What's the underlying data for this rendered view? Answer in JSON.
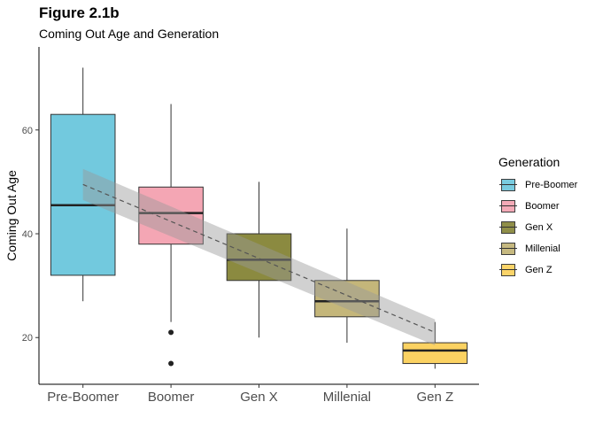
{
  "title": "Figure 2.1b",
  "subtitle": "Coming Out Age and Generation",
  "legend": {
    "title": "Generation",
    "items": [
      {
        "label": "Pre-Boomer",
        "color": "#72C9DE"
      },
      {
        "label": "Boomer",
        "color": "#F4A6B4"
      },
      {
        "label": "Gen X",
        "color": "#8B8A40"
      },
      {
        "label": "Millenial",
        "color": "#C4B67A"
      },
      {
        "label": "Gen Z",
        "color": "#FBD262"
      }
    ]
  },
  "chart_data": {
    "type": "box",
    "title": "Figure 2.1b",
    "subtitle": "Coming Out Age and Generation",
    "xlabel": "",
    "ylabel": "Coming Out Age",
    "ylim": [
      11,
      76
    ],
    "yticks": [
      20,
      40,
      60
    ],
    "grid": false,
    "legend_position": "right",
    "categories": [
      "Pre-Boomer",
      "Boomer",
      "Gen X",
      "Millenial",
      "Gen Z"
    ],
    "boxes": [
      {
        "category": "Pre-Boomer",
        "whisker_low": 27,
        "q1": 32,
        "median": 45.5,
        "q3": 63,
        "whisker_high": 72,
        "outliers": [],
        "color": "#72C9DE"
      },
      {
        "category": "Boomer",
        "whisker_low": 23,
        "q1": 38,
        "median": 44,
        "q3": 49,
        "whisker_high": 65,
        "outliers": [
          21,
          15
        ],
        "color": "#F4A6B4"
      },
      {
        "category": "Gen X",
        "whisker_low": 20,
        "q1": 31,
        "median": 35,
        "q3": 40,
        "whisker_high": 50,
        "outliers": [],
        "color": "#8B8A40"
      },
      {
        "category": "Millenial",
        "whisker_low": 19,
        "q1": 24,
        "median": 27,
        "q3": 31,
        "whisker_high": 41,
        "outliers": [],
        "color": "#C4B67A"
      },
      {
        "category": "Gen Z",
        "whisker_low": 14,
        "q1": 15,
        "median": 17.5,
        "q3": 19,
        "whisker_high": 23,
        "outliers": [],
        "color": "#FBD262"
      }
    ],
    "trend_line": {
      "style": "dashed",
      "x": [
        "Pre-Boomer",
        "Gen Z"
      ],
      "y": [
        49.5,
        21
      ],
      "ci_low": [
        46.5,
        18.5
      ],
      "ci_high": [
        52.5,
        23.5
      ]
    }
  }
}
